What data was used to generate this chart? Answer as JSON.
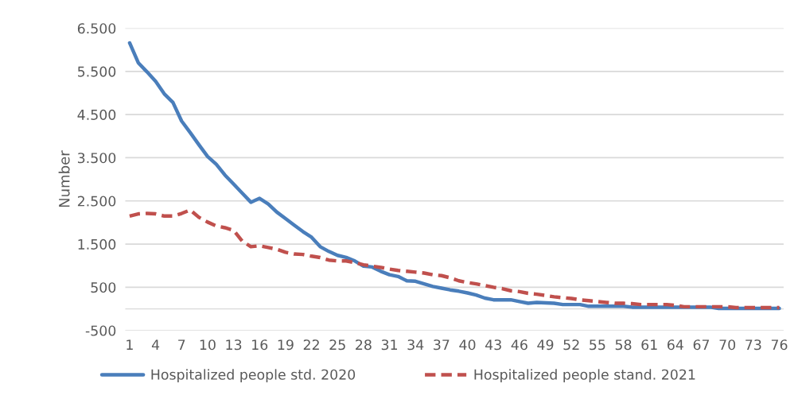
{
  "chart_data": {
    "type": "line",
    "ylabel": "Number",
    "categories": [
      "1",
      null,
      null,
      "4",
      null,
      null,
      "7",
      null,
      null,
      "10",
      null,
      null,
      "13",
      null,
      null,
      "16",
      null,
      null,
      "19",
      null,
      null,
      "22",
      null,
      null,
      "25",
      null,
      null,
      "28",
      null,
      null,
      "31",
      null,
      null,
      "34",
      null,
      null,
      "37",
      null,
      null,
      "40",
      null,
      null,
      "43",
      null,
      null,
      "46",
      null,
      null,
      "49",
      null,
      null,
      "52",
      null,
      null,
      "55",
      null,
      null,
      "58",
      null,
      null,
      "61",
      null,
      null,
      "64",
      null,
      null,
      "67",
      null,
      null,
      "70",
      null,
      null,
      "73",
      null,
      null,
      "76"
    ],
    "series": [
      {
        "name": "Hospitalized people std. 2020",
        "color": "#4a7ebb",
        "line_style": "solid",
        "values": [
          6160,
          5700,
          5490,
          5270,
          4980,
          4780,
          4350,
          4080,
          3800,
          3530,
          3350,
          3100,
          2890,
          2680,
          2470,
          2560,
          2430,
          2240,
          2090,
          1940,
          1790,
          1660,
          1440,
          1330,
          1240,
          1190,
          1110,
          990,
          970,
          870,
          790,
          750,
          650,
          640,
          580,
          520,
          480,
          440,
          410,
          370,
          320,
          250,
          210,
          210,
          210,
          170,
          130,
          150,
          140,
          130,
          100,
          100,
          100,
          60,
          60,
          60,
          60,
          60,
          40,
          40,
          40,
          40,
          40,
          40,
          40,
          40,
          40,
          40,
          10,
          10,
          10,
          10,
          10,
          10,
          10,
          10
        ]
      },
      {
        "name": "Hospitalized people stand. 2021",
        "color": "#c0504d",
        "line_style": "dashed",
        "values": [
          2150,
          2200,
          2210,
          2200,
          2150,
          2150,
          2210,
          2290,
          2120,
          2010,
          1920,
          1880,
          1820,
          1570,
          1440,
          1460,
          1420,
          1380,
          1310,
          1270,
          1260,
          1220,
          1190,
          1130,
          1110,
          1110,
          1070,
          1020,
          990,
          960,
          920,
          890,
          870,
          850,
          830,
          790,
          770,
          720,
          650,
          610,
          580,
          540,
          500,
          470,
          420,
          400,
          360,
          340,
          310,
          280,
          260,
          240,
          210,
          190,
          170,
          150,
          130,
          130,
          120,
          100,
          100,
          100,
          100,
          80,
          50,
          50,
          50,
          50,
          50,
          50,
          30,
          30,
          30,
          30,
          30,
          30
        ]
      }
    ],
    "ylim": [
      -500,
      6500
    ],
    "yticks": [
      -500,
      500,
      {
        "value": 1500,
        "label": "1.500"
      },
      {
        "value": 2500,
        "label": "2.500"
      },
      {
        "value": 3500,
        "label": "3.500"
      },
      {
        "value": 4500,
        "label": "4.500"
      },
      {
        "value": 5500,
        "label": "5.500"
      },
      {
        "value": 6500,
        "label": "6.500"
      }
    ],
    "ref_lines": [
      {
        "axis": "y",
        "value": 0,
        "color": "#d9d9d9"
      }
    ],
    "grid": "y",
    "legend": "bottom",
    "marker": "none"
  }
}
